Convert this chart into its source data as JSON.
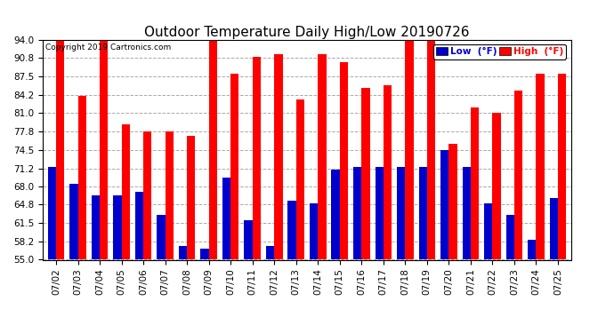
{
  "title": "Outdoor Temperature Daily High/Low 20190726",
  "copyright": "Copyright 2019 Cartronics.com",
  "dates": [
    "07/02",
    "07/03",
    "07/04",
    "07/05",
    "07/06",
    "07/07",
    "07/08",
    "07/09",
    "07/10",
    "07/11",
    "07/12",
    "07/13",
    "07/14",
    "07/15",
    "07/16",
    "07/17",
    "07/18",
    "07/19",
    "07/20",
    "07/21",
    "07/22",
    "07/23",
    "07/24",
    "07/25"
  ],
  "high": [
    94.0,
    84.0,
    94.0,
    79.0,
    77.8,
    77.8,
    77.0,
    94.0,
    88.0,
    91.0,
    91.5,
    83.5,
    91.5,
    90.0,
    85.5,
    86.0,
    94.0,
    94.0,
    75.5,
    82.0,
    81.0,
    85.0,
    88.0,
    88.0
  ],
  "low": [
    71.5,
    68.5,
    66.5,
    66.5,
    67.0,
    63.0,
    57.5,
    57.0,
    69.5,
    62.0,
    57.5,
    65.5,
    65.0,
    71.0,
    71.5,
    71.5,
    71.5,
    71.5,
    74.5,
    71.5,
    65.0,
    63.0,
    58.5,
    66.0
  ],
  "ylim_min": 55.0,
  "ylim_max": 94.0,
  "yticks": [
    55.0,
    58.2,
    61.5,
    64.8,
    68.0,
    71.2,
    74.5,
    77.8,
    81.0,
    84.2,
    87.5,
    90.8,
    94.0
  ],
  "bar_width": 0.38,
  "high_color": "#ff0000",
  "low_color": "#0000cc",
  "bg_color": "#ffffff",
  "grid_color": "#aaaaaa",
  "title_fontsize": 11,
  "tick_fontsize": 7.5,
  "legend_low_label": "Low  (°F)",
  "legend_high_label": "High  (°F)"
}
